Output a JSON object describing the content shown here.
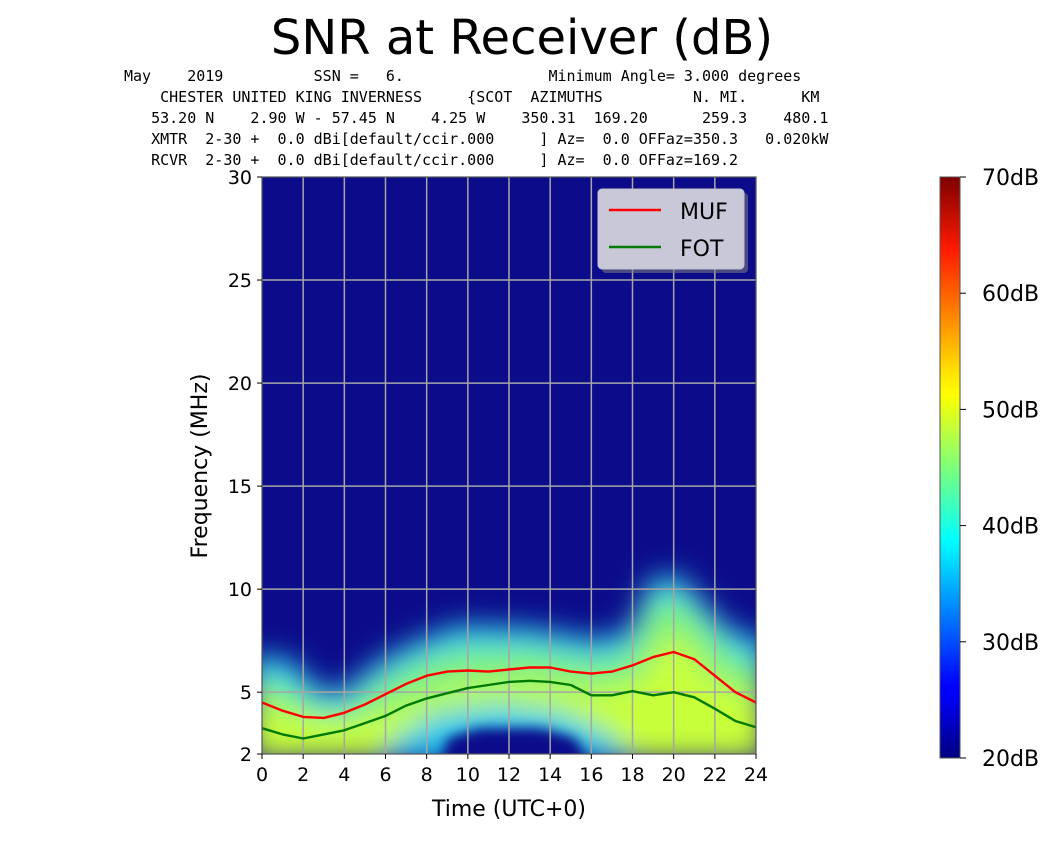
{
  "header": {
    "title": "SNR at Receiver (dB)",
    "lines": [
      "May    2019          SSN =   6.                Minimum Angle= 3.000 degrees",
      "    CHESTER UNITED KING INVERNESS     {SCOT  AZIMUTHS          N. MI.      KM",
      "   53.20 N    2.90 W - 57.45 N    4.25 W    350.31  169.20      259.3    480.1",
      "   XMTR  2-30 +  0.0 dBi[default/ccir.000     ] Az=  0.0 OFFaz=350.3   0.020kW",
      "   RCVR  2-30 +  0.0 dBi[default/ccir.000     ] Az=  0.0 OFFaz=169.2"
    ]
  },
  "colorbar": {
    "ticks": [
      "70dB",
      "60dB",
      "50dB",
      "40dB",
      "30dB",
      "20dB"
    ],
    "range": [
      20,
      70
    ],
    "colormap": "jet"
  },
  "chart_data": {
    "type": "heatmap",
    "xlabel": "Time (UTC+0)",
    "ylabel": "Frequency (MHz)",
    "xlim": [
      0,
      24
    ],
    "ylim": [
      2,
      30
    ],
    "x_ticks": [
      "0",
      "2",
      "4",
      "6",
      "8",
      "10",
      "12",
      "14",
      "16",
      "18",
      "20",
      "22",
      "24"
    ],
    "y_ticks": [
      "2",
      "5",
      "10",
      "15",
      "20",
      "25",
      "30"
    ],
    "grid": true,
    "legend_position": "top-right",
    "background_color": "#0c0c8a",
    "series": [
      {
        "name": "MUF",
        "color": "#ff0000",
        "x": [
          0,
          1,
          2,
          3,
          4,
          5,
          6,
          7,
          8,
          9,
          10,
          11,
          12,
          13,
          14,
          15,
          16,
          17,
          18,
          19,
          20,
          21,
          22,
          23,
          24
        ],
        "values": [
          4.5,
          4.1,
          3.8,
          3.75,
          4.0,
          4.4,
          4.9,
          5.4,
          5.8,
          6.0,
          6.05,
          6.0,
          6.1,
          6.2,
          6.2,
          6.0,
          5.9,
          6.0,
          6.3,
          6.7,
          6.95,
          6.6,
          5.8,
          5.0,
          4.5
        ]
      },
      {
        "name": "FOT",
        "color": "#007a00",
        "x": [
          0,
          1,
          2,
          3,
          4,
          5,
          6,
          7,
          8,
          9,
          10,
          11,
          12,
          13,
          14,
          15,
          16,
          17,
          18,
          19,
          20,
          21,
          22,
          23,
          24
        ],
        "values": [
          3.25,
          2.95,
          2.75,
          2.95,
          3.15,
          3.5,
          3.85,
          4.35,
          4.7,
          4.95,
          5.2,
          5.35,
          5.5,
          5.55,
          5.5,
          5.35,
          4.85,
          4.85,
          5.05,
          4.85,
          5.0,
          4.75,
          4.2,
          3.6,
          3.3
        ]
      }
    ]
  }
}
